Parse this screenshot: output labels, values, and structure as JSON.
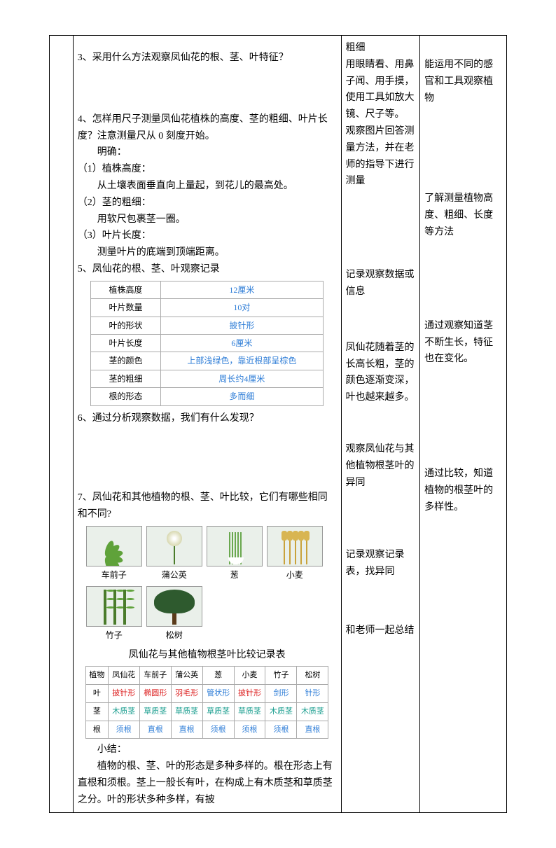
{
  "col2": {
    "q3": "3、采用什么方法观察凤仙花的根、茎、叶特征？",
    "q4_a": "4、怎样用尺子测量凤仙花植株的高度、茎的粗细、叶片长度？注意测量尺从 0 刻度开始。",
    "q4_b": "明确：",
    "q4_c": "（1）植株高度：",
    "q4_d": "从土壤表面垂直向上量起，到花儿的最高处。",
    "q4_e": "（2）茎的粗细：",
    "q4_f": "用软尺包裹茎一圈。",
    "q4_g": "（3）叶片长度：",
    "q4_h": "测量叶片的底端到顶端距离。",
    "q5": "5、凤仙花的根、茎、叶观察记录",
    "q6": "6、通过分析观察数据，我们有什么发现？",
    "q7": "7、凤仙花和其他植物的根、茎、叶比较，它们有哪些相同和不同?",
    "caption": "凤仙花与其他植物根茎叶比较记录表",
    "summary1": "小结：",
    "summary2": "植物的根、茎、叶的形态是多种多样的。根在形态上有直根和须根。茎上一般长有叶，在构成上有木质茎和草质茎之分。叶的形状多种多样，有披"
  },
  "col3": {
    "r1": "粗细",
    "r2": "用眼睛看、用鼻子闻、用手摸，使用工具如放大镜、尺子等。",
    "r3": "观察图片回答测量方法，并在老师的指导下进行测量",
    "r4": "记录观察数据或信息",
    "r5": "凤仙花随着茎的长高长粗，茎的颜色逐渐变深，叶也越来越多。",
    "r6": "观察凤仙花与其他植物根茎叶的异同",
    "r7": "记录观察记录表，找异同",
    "r8": "和老师一起总结"
  },
  "col4": {
    "r1": "能运用不同的感官和工具观察植物",
    "r2": "了解测量植物高度、粗细、长度等方法",
    "r3": "通过观察知道茎不断生长，特征也在变化。",
    "r4": "通过比较，知道植物的根茎叶的多样性。"
  },
  "obs_table": {
    "rows": [
      {
        "label": "植株高度",
        "value": "12厘米"
      },
      {
        "label": "叶片数量",
        "value": "10对"
      },
      {
        "label": "叶的形状",
        "value": "披针形"
      },
      {
        "label": "叶片长度",
        "value": "6厘米"
      },
      {
        "label": "茎的颜色",
        "value": "上部浅绿色，靠近根部呈棕色"
      },
      {
        "label": "茎的粗细",
        "value": "周长约4厘米"
      },
      {
        "label": "根的形态",
        "value": "多而细"
      }
    ]
  },
  "plants": [
    "车前子",
    "蒲公英",
    "葱",
    "小麦",
    "竹子",
    "松树"
  ],
  "compare": {
    "header": [
      "植物",
      "凤仙花",
      "车前子",
      "蒲公英",
      "葱",
      "小麦",
      "竹子",
      "松树"
    ],
    "leaf": [
      "叶",
      "披针形",
      "椭圆形",
      "羽毛形",
      "管状形",
      "披针形",
      "剑形",
      "针形"
    ],
    "stem": [
      "茎",
      "木质茎",
      "草质茎",
      "草质茎",
      "草质茎",
      "草质茎",
      "木质茎",
      "木质茎"
    ],
    "root": [
      "根",
      "须根",
      "直根",
      "直根",
      "须根",
      "须根",
      "须根",
      "直根"
    ],
    "colors": {
      "leaf": [
        "",
        "red",
        "red",
        "red",
        "blue",
        "red",
        "blue",
        "blue"
      ],
      "stem": [
        "",
        "teal",
        "teal",
        "teal",
        "teal",
        "teal",
        "teal",
        "teal"
      ],
      "root": [
        "",
        "blue",
        "blue",
        "blue",
        "blue",
        "blue",
        "blue",
        "blue"
      ]
    }
  }
}
